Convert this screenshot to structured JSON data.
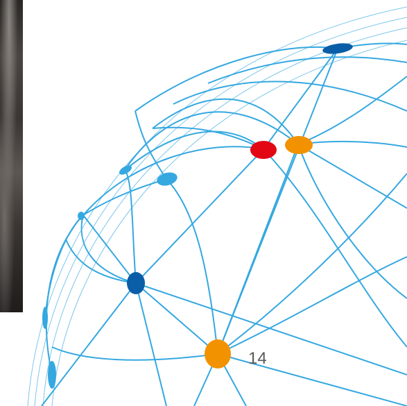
{
  "slide": {
    "page_number": "14"
  },
  "colors": {
    "line": "#35a8e0",
    "line_light": "#7cc6ec",
    "node_dark_blue": "#0a5ea8",
    "node_light_blue": "#35a8e0",
    "node_orange": "#f39200",
    "node_red": "#e30613"
  },
  "icons": {
    "graphic": "network-globe-graphic",
    "photo": "photo-strip"
  }
}
